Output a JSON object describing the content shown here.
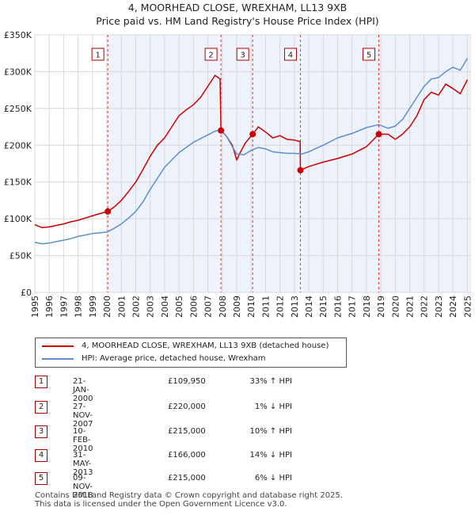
{
  "header": {
    "title": "4, MOORHEAD CLOSE, WREXHAM, LL13 9XB",
    "subtitle": "Price paid vs. HM Land Registry's House Price Index (HPI)"
  },
  "chart_data": {
    "type": "line",
    "xlim": [
      1995,
      2025.2
    ],
    "ylim": [
      0,
      350000
    ],
    "x_ticks": [
      "1995",
      "1996",
      "1997",
      "1998",
      "1999",
      "2000",
      "2001",
      "2002",
      "2003",
      "2004",
      "2005",
      "2006",
      "2007",
      "2008",
      "2009",
      "2010",
      "2011",
      "2012",
      "2013",
      "2014",
      "2015",
      "2016",
      "2017",
      "2018",
      "2019",
      "2020",
      "2021",
      "2022",
      "2023",
      "2024",
      "2025"
    ],
    "y_ticks": [
      {
        "value": 0,
        "label": "£0"
      },
      {
        "value": 50000,
        "label": "£50K"
      },
      {
        "value": 100000,
        "label": "£100K"
      },
      {
        "value": 150000,
        "label": "£150K"
      },
      {
        "value": 200000,
        "label": "£200K"
      },
      {
        "value": 250000,
        "label": "£250K"
      },
      {
        "value": 300000,
        "label": "£300K"
      },
      {
        "value": 350000,
        "label": "£350K"
      }
    ],
    "series": [
      {
        "name": "4, MOORHEAD CLOSE, WREXHAM, LL13 9XB (detached house)",
        "color": "#cc0000",
        "x": [
          1995.0,
          1995.5,
          1996.0,
          1996.5,
          1997.0,
          1997.5,
          1998.0,
          1998.5,
          1999.0,
          1999.5,
          2000.06,
          2000.5,
          2001.0,
          2001.5,
          2002.0,
          2002.5,
          2003.0,
          2003.5,
          2004.0,
          2004.5,
          2005.0,
          2005.5,
          2006.0,
          2006.5,
          2007.0,
          2007.5,
          2007.85,
          2007.91,
          2008.3,
          2008.7,
          2009.0,
          2009.3,
          2009.6,
          2010.11,
          2010.5,
          2011.0,
          2011.5,
          2012.0,
          2012.5,
          2013.0,
          2013.4,
          2013.42,
          2014.0,
          2015.0,
          2016.0,
          2017.0,
          2018.0,
          2018.86,
          2019.5,
          2020.0,
          2020.5,
          2021.0,
          2021.5,
          2022.0,
          2022.5,
          2023.0,
          2023.5,
          2024.0,
          2024.5,
          2025.0
        ],
        "y": [
          92000,
          88000,
          89000,
          91000,
          93000,
          96000,
          98000,
          101000,
          104000,
          107000,
          109950,
          116000,
          125000,
          137000,
          150000,
          167000,
          185000,
          200000,
          210000,
          225000,
          240000,
          248000,
          255000,
          265000,
          280000,
          295000,
          290000,
          220000,
          212000,
          200000,
          180000,
          192000,
          203000,
          215000,
          225000,
          218000,
          210000,
          213000,
          208000,
          207000,
          205000,
          166000,
          171000,
          177000,
          182000,
          188000,
          198000,
          215000,
          215000,
          208000,
          215000,
          225000,
          240000,
          262000,
          272000,
          268000,
          283000,
          277000,
          270000,
          289000
        ]
      },
      {
        "name": "HPI: Average price, detached house, Wrexham",
        "color": "#5b8fd0",
        "x": [
          1995.0,
          1995.5,
          1996.0,
          1996.5,
          1997.0,
          1997.5,
          1998.0,
          1998.5,
          1999.0,
          1999.5,
          2000.0,
          2000.5,
          2001.0,
          2001.5,
          2002.0,
          2002.5,
          2003.0,
          2003.5,
          2004.0,
          2004.5,
          2005.0,
          2005.5,
          2006.0,
          2006.5,
          2007.0,
          2007.5,
          2007.9,
          2008.3,
          2008.7,
          2009.0,
          2009.5,
          2010.0,
          2010.5,
          2011.0,
          2011.5,
          2012.0,
          2012.5,
          2013.0,
          2013.5,
          2014.0,
          2015.0,
          2016.0,
          2017.0,
          2018.0,
          2018.86,
          2019.5,
          2020.0,
          2020.5,
          2021.0,
          2021.5,
          2022.0,
          2022.5,
          2023.0,
          2023.5,
          2024.0,
          2024.5,
          2025.0
        ],
        "y": [
          68000,
          66000,
          67000,
          69000,
          71000,
          73000,
          76000,
          78000,
          80000,
          81000,
          82000,
          87000,
          93000,
          101000,
          110000,
          123000,
          140000,
          155000,
          170000,
          180000,
          190000,
          197000,
          204000,
          209000,
          214000,
          219000,
          221000,
          212000,
          198000,
          188000,
          187000,
          193000,
          197000,
          195000,
          191000,
          190000,
          189000,
          189000,
          188000,
          191000,
          200000,
          210000,
          216000,
          224000,
          228000,
          223000,
          226000,
          235000,
          250000,
          265000,
          280000,
          290000,
          292000,
          300000,
          306000,
          302000,
          318000
        ]
      }
    ],
    "transactions": [
      {
        "num": "1",
        "x": 2000.06,
        "y": 109950,
        "date": "21-JAN-2000",
        "price": "£109,950",
        "hpi": "33% ↑ HPI"
      },
      {
        "num": "2",
        "x": 2007.91,
        "y": 220000,
        "date": "27-NOV-2007",
        "price": "£220,000",
        "hpi": "1% ↓ HPI"
      },
      {
        "num": "3",
        "x": 2010.11,
        "y": 215000,
        "date": "10-FEB-2010",
        "price": "£215,000",
        "hpi": "10% ↑ HPI"
      },
      {
        "num": "4",
        "x": 2013.42,
        "y": 166000,
        "date": "31-MAY-2013",
        "price": "£166,000",
        "hpi": "14% ↓ HPI"
      },
      {
        "num": "5",
        "x": 2018.86,
        "y": 215000,
        "date": "09-NOV-2018",
        "price": "£215,000",
        "hpi": "6% ↓ HPI"
      }
    ]
  },
  "legend": {
    "property_label": "4, MOORHEAD CLOSE, WREXHAM, LL13 9XB (detached house)",
    "hpi_label": "HPI: Average price, detached house, Wrexham"
  },
  "footer": {
    "line1": "Contains HM Land Registry data © Crown copyright and database right 2025.",
    "line2": "This data is licensed under the Open Government Licence v3.0."
  }
}
